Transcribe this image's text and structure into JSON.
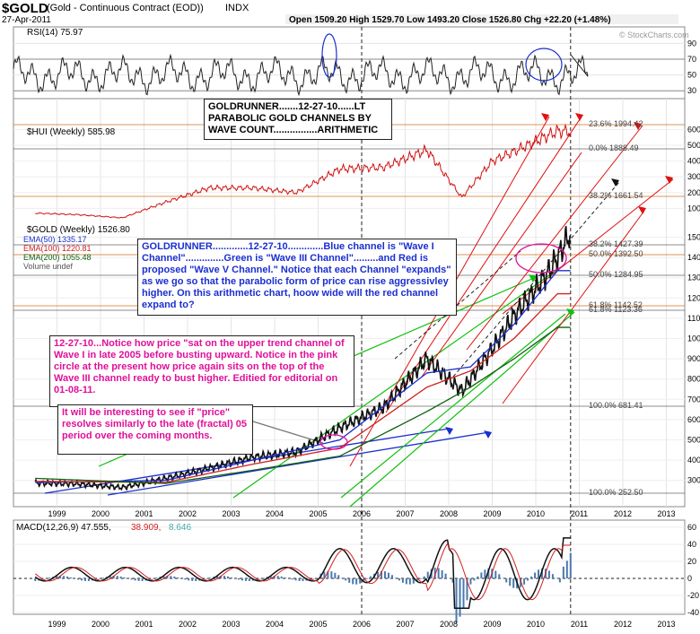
{
  "header": {
    "symbol": "$GOLD",
    "name": "(Gold - Continuous Contract (EOD))",
    "exchange": "INDX",
    "date": "27-Apr-2011",
    "ohlc": "Open 1509.20  High 1529.70  Low 1493.20  Close 1526.80  Chg +22.20 (+1.48%)",
    "brand": "© StockCharts.com"
  },
  "panels": {
    "rsi_label": "RSI(14) 75.97",
    "hui_label": "$HUI (Weekly) 585.98",
    "gold_label": "$GOLD (Weekly) 1526.80",
    "ema_labels": [
      "EMA(50) 1335.17",
      "EMA(100) 1220.81",
      "EMA(200) 1055.48",
      "Volume undef"
    ],
    "macd_label": "MACD(12,26,9) 47.555,",
    "macd_signal": "38.909,",
    "macd_hist": "8.646"
  },
  "fib_labels": [
    "23.6% 1994.42",
    "0.0% 1888.49",
    "38.2% 1661.54",
    "38.2% 1427.39",
    "50.0% 1392.50",
    "50.0% 1284.95",
    "61.8% 1142.52",
    "61.8% 1123.36",
    "100.0% 681.41",
    "100.0% 252.50"
  ],
  "notes": {
    "title": "GOLDRUNNER.......12-27-10......LT PARABOLIC GOLD CHANNELS BY WAVE COUNT................ARITHMETIC",
    "blue": "GOLDRUNNER.............12-27-10.............Blue channel is \"Wave I Channel\"..............Green is \"Wave III Channel\".........and Red is proposed \"Wave V Channel.\"  Notice that each Channel \"expands\" as we go so that the parabolic form of price can rise aggressivley higher.  On this arithmetic chart, hoow wide will the red channel expand to?",
    "pink": "12-27-10...Notice how price \"sat on the upper trend channel of Wave I in late 2005 before busting upward.  Notice in the pink circle at the present how price again sits on the top of the Wave III channel ready to bust higher. Editied for editorial on 01-08-11.",
    "fractal": "It will be interesting to see if \"price\" resolves similarly to the late (fractal) 05 period over the coming months."
  },
  "chart_data": {
    "type": "line",
    "x_ticks": [
      "1999",
      "2000",
      "2001",
      "2002",
      "2003",
      "2004",
      "2005",
      "2006",
      "2007",
      "2008",
      "2009",
      "2010",
      "2011",
      "2012",
      "2013"
    ],
    "rsi": {
      "yticks": [
        30,
        50,
        70,
        90
      ],
      "levels": [
        30,
        70
      ],
      "last": 75.97
    },
    "hui": {
      "yticks": [
        100,
        200,
        300,
        400,
        500,
        600
      ],
      "points": [
        [
          1999,
          70
        ],
        [
          2000,
          60
        ],
        [
          2001,
          40
        ],
        [
          2002,
          140
        ],
        [
          2003,
          230
        ],
        [
          2004,
          230
        ],
        [
          2005,
          200
        ],
        [
          2006,
          350
        ],
        [
          2007,
          360
        ],
        [
          2008,
          470
        ],
        [
          2008.8,
          170
        ],
        [
          2009.5,
          400
        ],
        [
          2010,
          460
        ],
        [
          2011,
          590
        ],
        [
          2011.3,
          586
        ]
      ]
    },
    "gold": {
      "yticks": [
        300,
        400,
        500,
        600,
        700,
        800,
        900,
        1000,
        1100,
        1200,
        1300,
        1400,
        1500
      ],
      "points": [
        [
          1999,
          287
        ],
        [
          2000,
          283
        ],
        [
          2001,
          265
        ],
        [
          2002,
          310
        ],
        [
          2003,
          360
        ],
        [
          2004,
          415
        ],
        [
          2005,
          440
        ],
        [
          2006,
          560
        ],
        [
          2007,
          660
        ],
        [
          2008,
          900
        ],
        [
          2008.8,
          740
        ],
        [
          2009.5,
          950
        ],
        [
          2010,
          1110
        ],
        [
          2010.7,
          1300
        ],
        [
          2011,
          1400
        ],
        [
          2011.3,
          1526.8
        ]
      ],
      "ema50": [
        [
          1999,
          290
        ],
        [
          2002,
          300
        ],
        [
          2004,
          400
        ],
        [
          2006,
          500
        ],
        [
          2008,
          830
        ],
        [
          2009,
          860
        ],
        [
          2010,
          1070
        ],
        [
          2011,
          1335
        ]
      ],
      "ema100": [
        [
          1999,
          295
        ],
        [
          2002,
          290
        ],
        [
          2004,
          380
        ],
        [
          2006,
          460
        ],
        [
          2008,
          760
        ],
        [
          2009,
          840
        ],
        [
          2010,
          1000
        ],
        [
          2011,
          1221
        ]
      ],
      "ema200": [
        [
          1999,
          310
        ],
        [
          2002,
          285
        ],
        [
          2004,
          350
        ],
        [
          2006,
          420
        ],
        [
          2008,
          640
        ],
        [
          2009,
          760
        ],
        [
          2010,
          900
        ],
        [
          2011,
          1055
        ]
      ]
    },
    "macd": {
      "yticks": [
        -40,
        -20,
        0,
        20,
        40,
        60
      ],
      "last": 47.555,
      "signal": 38.909,
      "hist": 8.646
    }
  }
}
